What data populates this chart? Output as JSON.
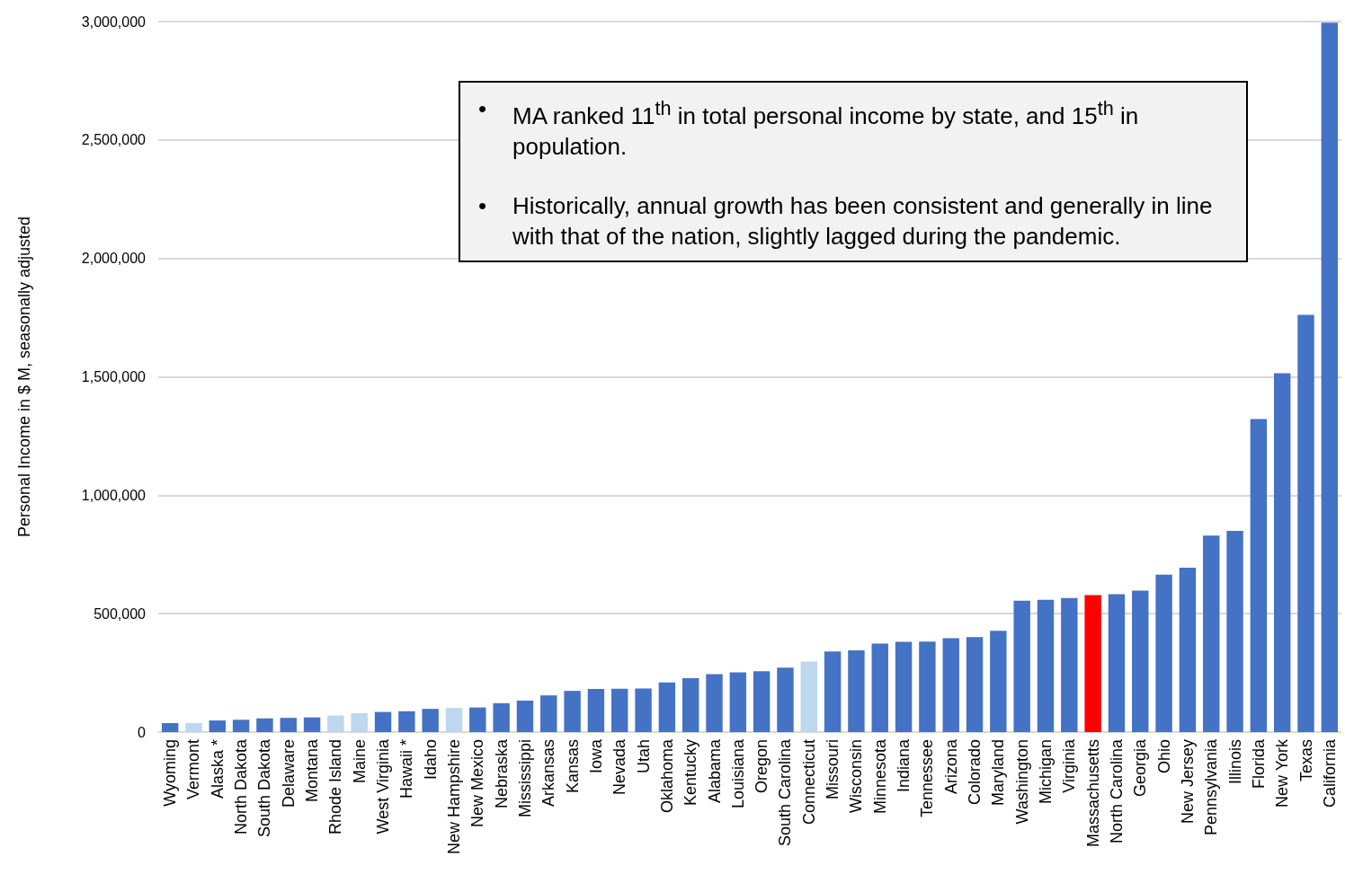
{
  "chart_data": {
    "type": "bar",
    "ylabel": "Personal Income in $ M, seasonally adjusted",
    "categories": [
      "Wyoming",
      "Vermont",
      "Alaska *",
      "North Dakota",
      "South Dakota",
      "Delaware",
      "Montana",
      "Rhode Island",
      "Maine",
      "West Virginia",
      "Hawaii *",
      "Idaho",
      "New Hampshire",
      "New Mexico",
      "Nebraska",
      "Mississippi",
      "Arkansas",
      "Kansas",
      "Iowa",
      "Nevada",
      "Utah",
      "Oklahoma",
      "Kentucky",
      "Alabama",
      "Louisiana",
      "Oregon",
      "South Carolina",
      "Connecticut",
      "Missouri",
      "Wisconsin",
      "Minnesota",
      "Indiana",
      "Tennessee",
      "Arizona",
      "Colorado",
      "Maryland",
      "Washington",
      "Michigan",
      "Virginia",
      "Massachusetts",
      "North Carolina",
      "Georgia",
      "Ohio",
      "New Jersey",
      "Pennsylvania",
      "Illinois",
      "Florida",
      "New York",
      "Texas",
      "California"
    ],
    "values": [
      38000,
      38000,
      49000,
      52000,
      58000,
      60000,
      62000,
      70000,
      80000,
      85000,
      88000,
      98000,
      102000,
      104000,
      122000,
      133000,
      155000,
      174000,
      182000,
      183000,
      184000,
      210000,
      228000,
      245000,
      252000,
      257000,
      272000,
      298000,
      340000,
      345000,
      374000,
      381000,
      382000,
      396000,
      401000,
      428000,
      555000,
      558000,
      566000,
      578000,
      582000,
      597000,
      665000,
      694000,
      830000,
      850000,
      1322000,
      1515000,
      1762000,
      2995000
    ],
    "colors": [
      "#4472c4",
      "#bdd7ee",
      "#4472c4",
      "#4472c4",
      "#4472c4",
      "#4472c4",
      "#4472c4",
      "#bdd7ee",
      "#bdd7ee",
      "#4472c4",
      "#4472c4",
      "#4472c4",
      "#bdd7ee",
      "#4472c4",
      "#4472c4",
      "#4472c4",
      "#4472c4",
      "#4472c4",
      "#4472c4",
      "#4472c4",
      "#4472c4",
      "#4472c4",
      "#4472c4",
      "#4472c4",
      "#4472c4",
      "#4472c4",
      "#4472c4",
      "#bdd7ee",
      "#4472c4",
      "#4472c4",
      "#4472c4",
      "#4472c4",
      "#4472c4",
      "#4472c4",
      "#4472c4",
      "#4472c4",
      "#4472c4",
      "#4472c4",
      "#4472c4",
      "#ff0000",
      "#4472c4",
      "#4472c4",
      "#4472c4",
      "#4472c4",
      "#4472c4",
      "#4472c4",
      "#4472c4",
      "#4472c4",
      "#4472c4",
      "#4472c4"
    ],
    "ylim": [
      0,
      3000000
    ],
    "yticks": [
      {
        "value": 0,
        "label": "0"
      },
      {
        "value": 500000,
        "label": "500,000"
      },
      {
        "value": 1000000,
        "label": "1,000,000"
      },
      {
        "value": 1500000,
        "label": "1,500,000"
      },
      {
        "value": 2000000,
        "label": "2,000,000"
      },
      {
        "value": 2500000,
        "label": "2,500,000"
      },
      {
        "value": 3000000,
        "label": "3,000,000"
      }
    ],
    "grid": "y",
    "annotations": [
      "• MA ranked 11$^{th}$ in total personal income by state, and 15$^{th}$ in population.",
      "• Historically, annual growth has been consistent and generally in line with that of the nation, slightly lagged during the pandemic."
    ]
  }
}
